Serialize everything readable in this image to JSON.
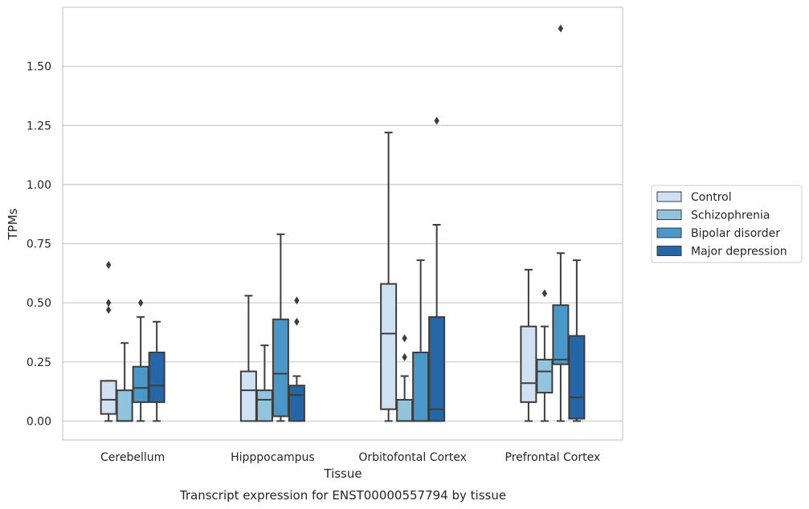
{
  "caption": "Transcript expression for ENST00000557794 by tissue",
  "chart_data": {
    "type": "box",
    "xlabel": "Tissue",
    "ylabel": "TPMs",
    "ylim": [
      -0.08,
      1.75
    ],
    "yticks": [
      0.0,
      0.25,
      0.5,
      0.75,
      1.0,
      1.25,
      1.5
    ],
    "ytick_labels": [
      "0.00",
      "0.25",
      "0.50",
      "0.75",
      "1.00",
      "1.25",
      "1.50"
    ],
    "grid": "horizontal",
    "legend_position": "right",
    "categories": [
      "Cerebellum",
      "Hipppocampus",
      "Orbitofontal Cortex",
      "Prefrontal Cortex"
    ],
    "series": [
      {
        "name": "Control",
        "color": "#cfe1f2",
        "boxes": [
          {
            "whislo": 0.0,
            "q1": 0.03,
            "med": 0.09,
            "q3": 0.17,
            "whishi": 0.17,
            "fliers": [
              0.47,
              0.5,
              0.66
            ]
          },
          {
            "whislo": 0.0,
            "q1": 0.0,
            "med": 0.13,
            "q3": 0.21,
            "whishi": 0.53,
            "fliers": []
          },
          {
            "whislo": 0.0,
            "q1": 0.05,
            "med": 0.37,
            "q3": 0.58,
            "whishi": 1.22,
            "fliers": []
          },
          {
            "whislo": 0.0,
            "q1": 0.08,
            "med": 0.16,
            "q3": 0.4,
            "whishi": 0.64,
            "fliers": []
          }
        ]
      },
      {
        "name": "Schizophrenia",
        "color": "#93c4de",
        "boxes": [
          {
            "whislo": 0.0,
            "q1": 0.0,
            "med": 0.0,
            "q3": 0.13,
            "whishi": 0.33,
            "fliers": []
          },
          {
            "whislo": 0.0,
            "q1": 0.0,
            "med": 0.09,
            "q3": 0.13,
            "whishi": 0.32,
            "fliers": []
          },
          {
            "whislo": 0.0,
            "q1": 0.0,
            "med": 0.0,
            "q3": 0.09,
            "whishi": 0.19,
            "fliers": [
              0.27,
              0.35
            ]
          },
          {
            "whislo": 0.0,
            "q1": 0.12,
            "med": 0.21,
            "q3": 0.26,
            "whishi": 0.4,
            "fliers": [
              0.54
            ]
          }
        ]
      },
      {
        "name": "Bipolar disorder",
        "color": "#4a98c9",
        "boxes": [
          {
            "whislo": 0.0,
            "q1": 0.08,
            "med": 0.14,
            "q3": 0.23,
            "whishi": 0.44,
            "fliers": [
              0.5
            ]
          },
          {
            "whislo": 0.0,
            "q1": 0.02,
            "med": 0.2,
            "q3": 0.43,
            "whishi": 0.79,
            "fliers": []
          },
          {
            "whislo": 0.0,
            "q1": 0.0,
            "med": 0.0,
            "q3": 0.29,
            "whishi": 0.68,
            "fliers": []
          },
          {
            "whislo": 0.0,
            "q1": 0.24,
            "med": 0.26,
            "q3": 0.49,
            "whishi": 0.71,
            "fliers": [
              1.66
            ]
          }
        ]
      },
      {
        "name": "Major depression",
        "color": "#2566a8",
        "boxes": [
          {
            "whislo": 0.0,
            "q1": 0.08,
            "med": 0.15,
            "q3": 0.29,
            "whishi": 0.42,
            "fliers": []
          },
          {
            "whislo": 0.0,
            "q1": 0.0,
            "med": 0.11,
            "q3": 0.15,
            "whishi": 0.19,
            "fliers": [
              0.42,
              0.51
            ]
          },
          {
            "whislo": 0.0,
            "q1": 0.0,
            "med": 0.05,
            "q3": 0.44,
            "whishi": 0.83,
            "fliers": [
              1.27
            ]
          },
          {
            "whislo": 0.0,
            "q1": 0.01,
            "med": 0.1,
            "q3": 0.36,
            "whishi": 0.68,
            "fliers": []
          }
        ]
      }
    ]
  }
}
